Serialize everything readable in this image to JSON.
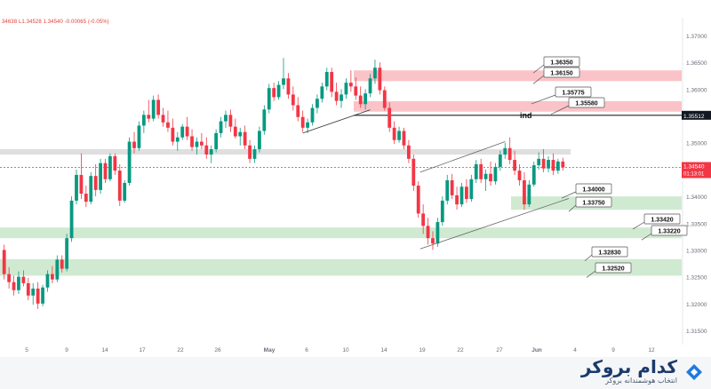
{
  "header": {
    "ohlc_text": "34638  L1.34528  1.34540  -0.00065 (-0.05%)"
  },
  "brand": {
    "name": "کدام بروکر",
    "subtitle": "انتخاب هوشمندانه بروکر"
  },
  "colors": {
    "bull": "#089981",
    "bear": "#f23645",
    "resistance_zone": "#f8b8bd",
    "support_zone": "#c8e6c9",
    "neutral_zone": "#d9d9d9",
    "price_line": "#f23645",
    "axis_text": "#6a6d78"
  },
  "chart_data": {
    "type": "candlestick",
    "y_axis": {
      "ticks": [
        "1.37000",
        "1.36500",
        "1.36000",
        "1.35500",
        "1.35000",
        "1.34500",
        "1.34000",
        "1.33500",
        "1.33000",
        "1.32500",
        "1.32000",
        "1.31500"
      ],
      "ylim": [
        1.312,
        1.372
      ]
    },
    "x_axis": {
      "ticks": [
        "5",
        "9",
        "14",
        "17",
        "22",
        "26",
        "May",
        "6",
        "10",
        "14",
        "19",
        "22",
        "27",
        "Jun",
        "4",
        "9",
        "12"
      ]
    },
    "price_labels": {
      "hline": "1.35512",
      "current": "1.34540",
      "countdown": "01:13:01"
    },
    "zones": [
      {
        "kind": "resistance",
        "top": 1.3635,
        "bottom": 1.3615
      },
      {
        "kind": "resistance",
        "top": 1.35775,
        "bottom": 1.3558
      },
      {
        "kind": "neutral",
        "top": 1.3488,
        "bottom": 1.3478
      },
      {
        "kind": "support",
        "top": 1.34,
        "bottom": 1.3375
      },
      {
        "kind": "support",
        "top": 1.3342,
        "bottom": 1.3322
      },
      {
        "kind": "support",
        "top": 1.3283,
        "bottom": 1.3252
      }
    ],
    "callouts": [
      "1.36350",
      "1.36150",
      "1.35775",
      "1.35580",
      "1.34000",
      "1.33750",
      "1.33420",
      "1.33220",
      "1.32830",
      "1.32520"
    ],
    "annotation": "ind",
    "candles_ohlc": [
      [
        1.33,
        1.331,
        1.3245,
        1.3255
      ],
      [
        1.3255,
        1.3268,
        1.3228,
        1.324
      ],
      [
        1.324,
        1.3252,
        1.3215,
        1.3225
      ],
      [
        1.3225,
        1.326,
        1.3218,
        1.325
      ],
      [
        1.325,
        1.3262,
        1.3232,
        1.3238
      ],
      [
        1.3238,
        1.3248,
        1.3206,
        1.3215
      ],
      [
        1.3215,
        1.3238,
        1.3198,
        1.3228
      ],
      [
        1.3228,
        1.324,
        1.319,
        1.32
      ],
      [
        1.32,
        1.3235,
        1.3195,
        1.323
      ],
      [
        1.323,
        1.3262,
        1.3222,
        1.3255
      ],
      [
        1.3255,
        1.327,
        1.3238,
        1.3245
      ],
      [
        1.3245,
        1.329,
        1.324,
        1.3282
      ],
      [
        1.3282,
        1.329,
        1.3258,
        1.3265
      ],
      [
        1.3265,
        1.333,
        1.326,
        1.3322
      ],
      [
        1.3322,
        1.34,
        1.3315,
        1.3392
      ],
      [
        1.3392,
        1.345,
        1.3385,
        1.344
      ],
      [
        1.344,
        1.348,
        1.3395,
        1.3405
      ],
      [
        1.3405,
        1.342,
        1.338,
        1.339
      ],
      [
        1.339,
        1.3445,
        1.3385,
        1.3438
      ],
      [
        1.3438,
        1.346,
        1.34,
        1.3412
      ],
      [
        1.3412,
        1.347,
        1.3405,
        1.3462
      ],
      [
        1.3462,
        1.347,
        1.3425,
        1.3432
      ],
      [
        1.3432,
        1.348,
        1.3428,
        1.3475
      ],
      [
        1.3475,
        1.348,
        1.344,
        1.3448
      ],
      [
        1.3448,
        1.346,
        1.3382,
        1.3392
      ],
      [
        1.3392,
        1.343,
        1.3388,
        1.3425
      ],
      [
        1.3425,
        1.351,
        1.342,
        1.3502
      ],
      [
        1.3502,
        1.352,
        1.348,
        1.349
      ],
      [
        1.349,
        1.354,
        1.3485,
        1.3532
      ],
      [
        1.3532,
        1.356,
        1.3518,
        1.3552
      ],
      [
        1.3552,
        1.358,
        1.3538,
        1.3545
      ],
      [
        1.3545,
        1.3588,
        1.354,
        1.358
      ],
      [
        1.358,
        1.359,
        1.3545,
        1.3552
      ],
      [
        1.3552,
        1.3565,
        1.353,
        1.3538
      ],
      [
        1.3538,
        1.356,
        1.352,
        1.3528
      ],
      [
        1.3528,
        1.3545,
        1.3495,
        1.3502
      ],
      [
        1.3502,
        1.352,
        1.3485,
        1.351
      ],
      [
        1.351,
        1.3535,
        1.3505,
        1.353
      ],
      [
        1.353,
        1.3548,
        1.3505,
        1.3512
      ],
      [
        1.3512,
        1.3525,
        1.3485,
        1.3492
      ],
      [
        1.3492,
        1.351,
        1.3478,
        1.3502
      ],
      [
        1.3502,
        1.3518,
        1.3488,
        1.3495
      ],
      [
        1.3495,
        1.351,
        1.347,
        1.3478
      ],
      [
        1.3478,
        1.3495,
        1.3462,
        1.3488
      ],
      [
        1.3488,
        1.3525,
        1.3482,
        1.3518
      ],
      [
        1.3518,
        1.3548,
        1.351,
        1.354
      ],
      [
        1.354,
        1.356,
        1.3528,
        1.3552
      ],
      [
        1.3552,
        1.3562,
        1.352,
        1.353
      ],
      [
        1.353,
        1.3545,
        1.3508,
        1.3512
      ],
      [
        1.3512,
        1.3528,
        1.3495,
        1.352
      ],
      [
        1.352,
        1.3532,
        1.3488,
        1.3495
      ],
      [
        1.3495,
        1.3505,
        1.3462,
        1.347
      ],
      [
        1.347,
        1.3495,
        1.3462,
        1.3488
      ],
      [
        1.3488,
        1.353,
        1.3482,
        1.3522
      ],
      [
        1.3522,
        1.357,
        1.3515,
        1.3562
      ],
      [
        1.3562,
        1.361,
        1.3555,
        1.3602
      ],
      [
        1.3602,
        1.3612,
        1.3578,
        1.3585
      ],
      [
        1.3585,
        1.3615,
        1.358,
        1.3608
      ],
      [
        1.3608,
        1.3658,
        1.36,
        1.362
      ],
      [
        1.362,
        1.363,
        1.3582,
        1.359
      ],
      [
        1.359,
        1.3605,
        1.356,
        1.357
      ],
      [
        1.357,
        1.3585,
        1.354,
        1.3548
      ],
      [
        1.3548,
        1.356,
        1.352,
        1.3528
      ],
      [
        1.3528,
        1.3545,
        1.3518,
        1.3538
      ],
      [
        1.3538,
        1.3572,
        1.3532,
        1.3565
      ],
      [
        1.3565,
        1.359,
        1.3555,
        1.3582
      ],
      [
        1.3582,
        1.3612,
        1.3575,
        1.3605
      ],
      [
        1.3605,
        1.364,
        1.3598,
        1.3632
      ],
      [
        1.3632,
        1.364,
        1.3585,
        1.3595
      ],
      [
        1.3595,
        1.3612,
        1.357,
        1.3578
      ],
      [
        1.3578,
        1.36,
        1.3565,
        1.359
      ],
      [
        1.359,
        1.362,
        1.3582,
        1.3612
      ],
      [
        1.3612,
        1.3635,
        1.3595,
        1.3605
      ],
      [
        1.3605,
        1.3622,
        1.358,
        1.3588
      ],
      [
        1.3588,
        1.3605,
        1.3565,
        1.3572
      ],
      [
        1.3572,
        1.36,
        1.3562,
        1.3592
      ],
      [
        1.3592,
        1.3628,
        1.3585,
        1.362
      ],
      [
        1.362,
        1.3655,
        1.361,
        1.364
      ],
      [
        1.364,
        1.365,
        1.359,
        1.3598
      ],
      [
        1.3598,
        1.3605,
        1.356,
        1.3565
      ],
      [
        1.3565,
        1.3575,
        1.352,
        1.3528
      ],
      [
        1.3528,
        1.354,
        1.3498,
        1.3505
      ],
      [
        1.3505,
        1.353,
        1.35,
        1.3522
      ],
      [
        1.3522,
        1.3528,
        1.3488,
        1.3495
      ],
      [
        1.3495,
        1.3505,
        1.3462,
        1.347
      ],
      [
        1.347,
        1.3478,
        1.341,
        1.342
      ],
      [
        1.342,
        1.3428,
        1.336,
        1.3368
      ],
      [
        1.3368,
        1.3385,
        1.333,
        1.3345
      ],
      [
        1.3345,
        1.336,
        1.331,
        1.3322
      ],
      [
        1.3322,
        1.3335,
        1.33,
        1.3312
      ],
      [
        1.3312,
        1.336,
        1.3306,
        1.3352
      ],
      [
        1.3352,
        1.34,
        1.3345,
        1.3392
      ],
      [
        1.3392,
        1.344,
        1.3385,
        1.343
      ],
      [
        1.343,
        1.3442,
        1.3395,
        1.3402
      ],
      [
        1.3402,
        1.3418,
        1.3375,
        1.3385
      ],
      [
        1.3385,
        1.3425,
        1.338,
        1.3418
      ],
      [
        1.3418,
        1.3432,
        1.3388,
        1.3395
      ],
      [
        1.3395,
        1.344,
        1.339,
        1.3432
      ],
      [
        1.3432,
        1.3468,
        1.3425,
        1.346
      ],
      [
        1.346,
        1.347,
        1.3425,
        1.3432
      ],
      [
        1.3432,
        1.345,
        1.341,
        1.3442
      ],
      [
        1.3442,
        1.3465,
        1.342,
        1.3428
      ],
      [
        1.3428,
        1.3462,
        1.3422,
        1.3455
      ],
      [
        1.3455,
        1.3485,
        1.3448,
        1.3478
      ],
      [
        1.3478,
        1.35,
        1.347,
        1.349
      ],
      [
        1.349,
        1.351,
        1.346,
        1.3468
      ],
      [
        1.3468,
        1.3485,
        1.344,
        1.3448
      ],
      [
        1.3448,
        1.346,
        1.342,
        1.343
      ],
      [
        1.343,
        1.3445,
        1.3375,
        1.3385
      ],
      [
        1.3385,
        1.343,
        1.338,
        1.3422
      ],
      [
        1.3422,
        1.3465,
        1.3418,
        1.3458
      ],
      [
        1.3458,
        1.3482,
        1.345,
        1.347
      ],
      [
        1.347,
        1.3488,
        1.3445,
        1.3452
      ],
      [
        1.3452,
        1.3475,
        1.3445,
        1.3468
      ],
      [
        1.3468,
        1.348,
        1.344,
        1.3448
      ],
      [
        1.3448,
        1.347,
        1.3442,
        1.3465
      ],
      [
        1.3465,
        1.3472,
        1.3448,
        1.3454
      ]
    ]
  }
}
